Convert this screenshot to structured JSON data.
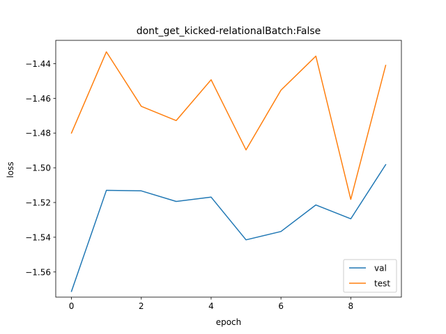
{
  "chart_data": {
    "type": "line",
    "title": "dont_get_kicked-relationalBatch:False",
    "xlabel": "epoch",
    "ylabel": "loss",
    "xlim": [
      -0.45,
      9.45
    ],
    "ylim": [
      -1.5745,
      -1.4266
    ],
    "x_ticks": [
      0,
      2,
      4,
      6,
      8
    ],
    "y_ticks": [
      -1.56,
      -1.54,
      -1.52,
      -1.5,
      -1.48,
      -1.46,
      -1.44
    ],
    "y_tick_labels": [
      "−1.56",
      "−1.54",
      "−1.52",
      "−1.50",
      "−1.48",
      "−1.46",
      "−1.44"
    ],
    "x": [
      0,
      1,
      2,
      3,
      4,
      5,
      6,
      7,
      8,
      9
    ],
    "series": [
      {
        "name": "val",
        "color": "#1f77b4",
        "values": [
          -1.5712,
          -1.513,
          -1.5133,
          -1.5194,
          -1.5169,
          -1.5415,
          -1.5367,
          -1.5214,
          -1.5294,
          -1.4982
        ]
      },
      {
        "name": "test",
        "color": "#ff7f0e",
        "values": [
          -1.48,
          -1.4332,
          -1.4646,
          -1.4728,
          -1.4493,
          -1.4897,
          -1.4553,
          -1.4357,
          -1.5182,
          -1.441
        ]
      }
    ],
    "grid": false,
    "legend": "lower-right"
  }
}
